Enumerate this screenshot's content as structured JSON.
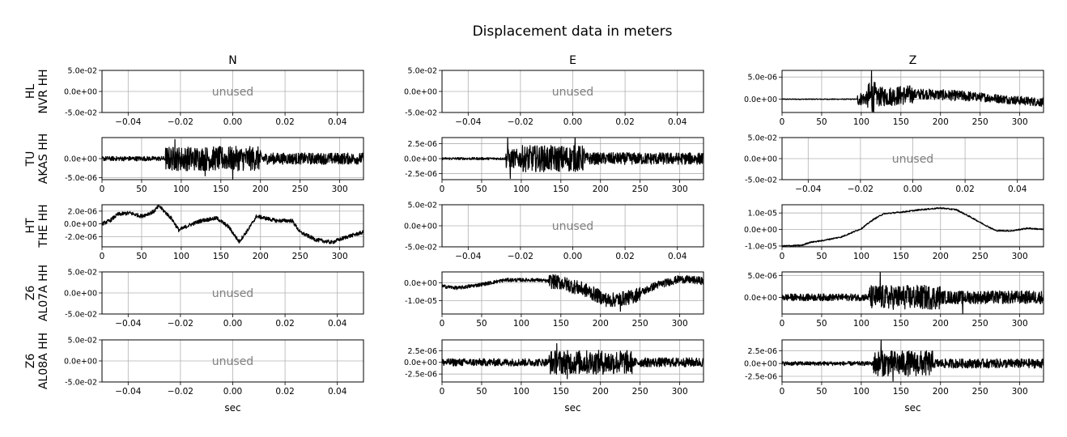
{
  "title": "Displacement data in meters",
  "xlabel": "sec",
  "columns": [
    "N",
    "E",
    "Z"
  ],
  "stations": [
    {
      "network": "HL",
      "code": "NVR HH"
    },
    {
      "network": "TU",
      "code": "AKAS HH"
    },
    {
      "network": "HT",
      "code": "THE HH"
    },
    {
      "network": "Z6",
      "code": "AL07A HH"
    },
    {
      "network": "Z6",
      "code": "AL08A HH"
    }
  ],
  "unused_label": "unused",
  "unused_axes": {
    "xlim": [
      -0.05,
      0.05
    ],
    "ylim": [
      -0.05,
      0.05
    ],
    "xticks": [
      "-0.04",
      "-0.02",
      "0.00",
      "0.02",
      "0.04"
    ],
    "yticks": [
      "5.0e-02",
      "0.0e+00",
      "-5.0e-02"
    ]
  },
  "trace_xticks": [
    "0",
    "50",
    "100",
    "150",
    "200",
    "250",
    "300"
  ],
  "colors": {
    "trace": "#000000",
    "grid": "#b0b0b0",
    "unused_text": "#808080"
  },
  "chart_data": [
    {
      "row": 0,
      "col": 0,
      "type": "line",
      "unused": true
    },
    {
      "row": 0,
      "col": 1,
      "type": "line",
      "unused": true
    },
    {
      "row": 0,
      "col": 2,
      "type": "line",
      "unused": false,
      "xlim": [
        0,
        330
      ],
      "ylim": [
        -3e-06,
        6.5e-06
      ],
      "yticks": [
        {
          "v": 5e-06,
          "label": "5.0e-06"
        },
        {
          "v": 0,
          "label": "0.0e+00"
        }
      ],
      "noise": [
        {
          "t0": 0,
          "t1": 95,
          "amp": 1e-07
        },
        {
          "t0": 95,
          "t1": 108,
          "amp": 1.5e-06
        },
        {
          "t0": 108,
          "t1": 118,
          "amp": 3.5e-06
        },
        {
          "t0": 118,
          "t1": 165,
          "amp": 2.2e-06
        },
        {
          "t0": 165,
          "t1": 240,
          "amp": 1.2e-06
        },
        {
          "t0": 240,
          "t1": 330,
          "amp": 1e-06
        }
      ],
      "trend": [
        [
          0,
          0
        ],
        [
          95,
          0
        ],
        [
          120,
          5e-07
        ],
        [
          180,
          1.2e-06
        ],
        [
          250,
          5e-07
        ],
        [
          300,
          -3e-07
        ],
        [
          330,
          -7e-07
        ]
      ],
      "spikes": [
        [
          113,
          6.5e-06
        ],
        [
          115,
          -2.8e-06
        ]
      ]
    },
    {
      "row": 1,
      "col": 0,
      "type": "line",
      "unused": false,
      "xlim": [
        0,
        330
      ],
      "ylim": [
        -5.5e-06,
        5.5e-06
      ],
      "yticks": [
        {
          "v": 0,
          "label": "0.0e+00"
        },
        {
          "v": -5e-06,
          "label": "-5.0e-06"
        }
      ],
      "noise": [
        {
          "t0": 0,
          "t1": 80,
          "amp": 6e-07
        },
        {
          "t0": 80,
          "t1": 200,
          "amp": 3.2e-06
        },
        {
          "t0": 200,
          "t1": 330,
          "amp": 1.5e-06
        }
      ],
      "trend": [
        [
          0,
          0
        ],
        [
          330,
          0
        ]
      ],
      "spikes": [
        [
          92,
          5e-06
        ],
        [
          165,
          -5.4e-06
        ],
        [
          130,
          -4.5e-06
        ]
      ]
    },
    {
      "row": 1,
      "col": 1,
      "type": "line",
      "unused": false,
      "xlim": [
        0,
        330
      ],
      "ylim": [
        -3.5e-06,
        3.5e-06
      ],
      "yticks": [
        {
          "v": 2.5e-06,
          "label": "2.5e-06"
        },
        {
          "v": 0,
          "label": "0.0e+00"
        },
        {
          "v": -2.5e-06,
          "label": "-2.5e-06"
        }
      ],
      "noise": [
        {
          "t0": 0,
          "t1": 80,
          "amp": 2e-07
        },
        {
          "t0": 80,
          "t1": 100,
          "amp": 1.6e-06
        },
        {
          "t0": 100,
          "t1": 180,
          "amp": 2.2e-06
        },
        {
          "t0": 180,
          "t1": 330,
          "amp": 1e-06
        }
      ],
      "trend": [
        [
          0,
          0
        ],
        [
          330,
          0
        ]
      ],
      "spikes": [
        [
          83,
          3.5e-06
        ],
        [
          86,
          -3.3e-06
        ],
        [
          168,
          3.5e-06
        ]
      ]
    },
    {
      "row": 1,
      "col": 2,
      "type": "line",
      "unused": true
    },
    {
      "row": 2,
      "col": 0,
      "type": "line",
      "unused": false,
      "xlim": [
        0,
        330
      ],
      "ylim": [
        -3.6e-06,
        3e-06
      ],
      "yticks": [
        {
          "v": 2e-06,
          "label": "2.0e-06"
        },
        {
          "v": 0,
          "label": "0.0e+00"
        },
        {
          "v": -2e-06,
          "label": "-2.0e-06"
        }
      ],
      "noise": [
        {
          "t0": 0,
          "t1": 330,
          "amp": 3e-07
        }
      ],
      "trend": [
        [
          0,
          0
        ],
        [
          10,
          5e-07
        ],
        [
          20,
          1.5e-06
        ],
        [
          35,
          1.7e-06
        ],
        [
          50,
          1.2e-06
        ],
        [
          65,
          1.9e-06
        ],
        [
          72,
          2.8e-06
        ],
        [
          80,
          1.8e-06
        ],
        [
          88,
          8e-07
        ],
        [
          97,
          -1e-06
        ],
        [
          110,
          -2e-07
        ],
        [
          125,
          5e-07
        ],
        [
          145,
          9e-07
        ],
        [
          160,
          -5e-07
        ],
        [
          173,
          -2.8e-06
        ],
        [
          185,
          -8e-07
        ],
        [
          195,
          1.2e-06
        ],
        [
          220,
          5e-07
        ],
        [
          240,
          5e-07
        ],
        [
          250,
          -1.3e-06
        ],
        [
          270,
          -2.5e-06
        ],
        [
          290,
          -2.9e-06
        ],
        [
          310,
          -2e-06
        ],
        [
          330,
          -1.3e-06
        ]
      ],
      "spikes": []
    },
    {
      "row": 2,
      "col": 1,
      "type": "line",
      "unused": true
    },
    {
      "row": 2,
      "col": 2,
      "type": "line",
      "unused": false,
      "xlim": [
        0,
        330
      ],
      "ylim": [
        -1.05e-05,
        1.5e-05
      ],
      "yticks": [
        {
          "v": 1e-05,
          "label": "1.0e-05"
        },
        {
          "v": 0,
          "label": "0.0e+00"
        },
        {
          "v": -1e-05,
          "label": "-1.0e-05"
        }
      ],
      "noise": [
        {
          "t0": 0,
          "t1": 330,
          "amp": 4e-07
        }
      ],
      "trend": [
        [
          0,
          -1e-05
        ],
        [
          25,
          -9.6e-06
        ],
        [
          35,
          -7.8e-06
        ],
        [
          50,
          -6.8e-06
        ],
        [
          75,
          -4.5e-06
        ],
        [
          100,
          5e-07
        ],
        [
          115,
          6e-06
        ],
        [
          128,
          9.5e-06
        ],
        [
          150,
          1.05e-05
        ],
        [
          175,
          1.2e-05
        ],
        [
          200,
          1.3e-05
        ],
        [
          220,
          1.2e-05
        ],
        [
          240,
          7e-06
        ],
        [
          255,
          3e-06
        ],
        [
          270,
          -7e-07
        ],
        [
          290,
          -8e-07
        ],
        [
          310,
          8e-07
        ],
        [
          330,
          0
        ]
      ],
      "spikes": []
    },
    {
      "row": 3,
      "col": 0,
      "type": "line",
      "unused": true
    },
    {
      "row": 3,
      "col": 1,
      "type": "line",
      "unused": false,
      "xlim": [
        0,
        330
      ],
      "ylim": [
        -1.75e-05,
        6e-06
      ],
      "yticks": [
        {
          "v": 0,
          "label": "0.0e+00"
        },
        {
          "v": -1e-05,
          "label": "-1.0e-05"
        }
      ],
      "noise": [
        {
          "t0": 0,
          "t1": 135,
          "amp": 1e-06
        },
        {
          "t0": 135,
          "t1": 250,
          "amp": 4e-06
        },
        {
          "t0": 250,
          "t1": 330,
          "amp": 2.2e-06
        }
      ],
      "trend": [
        [
          0,
          -2e-06
        ],
        [
          20,
          -3e-06
        ],
        [
          50,
          -1e-06
        ],
        [
          80,
          1.5e-06
        ],
        [
          120,
          1.5e-06
        ],
        [
          150,
          0
        ],
        [
          180,
          -4e-06
        ],
        [
          210,
          -1e-05
        ],
        [
          240,
          -8e-06
        ],
        [
          270,
          -1.5e-06
        ],
        [
          300,
          2e-06
        ],
        [
          330,
          1e-06
        ]
      ],
      "spikes": [
        [
          140,
          4.5e-06
        ],
        [
          225,
          -1.6e-05
        ]
      ]
    },
    {
      "row": 3,
      "col": 2,
      "type": "line",
      "unused": false,
      "xlim": [
        0,
        330
      ],
      "ylim": [
        -3.8e-06,
        5.8e-06
      ],
      "yticks": [
        {
          "v": 5e-06,
          "label": "5.0e-06"
        },
        {
          "v": 0,
          "label": "0.0e+00"
        }
      ],
      "noise": [
        {
          "t0": 0,
          "t1": 110,
          "amp": 8e-07
        },
        {
          "t0": 110,
          "t1": 200,
          "amp": 2.8e-06
        },
        {
          "t0": 200,
          "t1": 330,
          "amp": 1.5e-06
        }
      ],
      "trend": [
        [
          0,
          0
        ],
        [
          330,
          0
        ]
      ],
      "spikes": [
        [
          124,
          5.8e-06
        ],
        [
          228,
          -3.8e-06
        ]
      ]
    },
    {
      "row": 4,
      "col": 0,
      "type": "line",
      "unused": true
    },
    {
      "row": 4,
      "col": 1,
      "type": "line",
      "unused": false,
      "xlim": [
        0,
        330
      ],
      "ylim": [
        -4.2e-06,
        4.8e-06
      ],
      "yticks": [
        {
          "v": 2.5e-06,
          "label": "2.5e-06"
        },
        {
          "v": 0,
          "label": "0.0e+00"
        },
        {
          "v": -2.5e-06,
          "label": "-2.5e-06"
        }
      ],
      "noise": [
        {
          "t0": 0,
          "t1": 135,
          "amp": 8e-07
        },
        {
          "t0": 135,
          "t1": 240,
          "amp": 2.6e-06
        },
        {
          "t0": 240,
          "t1": 330,
          "amp": 1e-06
        }
      ],
      "trend": [
        [
          0,
          0
        ],
        [
          330,
          0
        ]
      ],
      "spikes": [
        [
          145,
          4e-06
        ],
        [
          158,
          -3.5e-06
        ]
      ]
    },
    {
      "row": 4,
      "col": 2,
      "type": "line",
      "unused": false,
      "xlim": [
        0,
        330
      ],
      "ylim": [
        -3.6e-06,
        4.6e-06
      ],
      "yticks": [
        {
          "v": 2.5e-06,
          "label": "2.5e-06"
        },
        {
          "v": 0,
          "label": "0.0e+00"
        },
        {
          "v": -2.5e-06,
          "label": "-2.5e-06"
        }
      ],
      "noise": [
        {
          "t0": 0,
          "t1": 115,
          "amp": 4e-07
        },
        {
          "t0": 115,
          "t1": 190,
          "amp": 2.5e-06
        },
        {
          "t0": 190,
          "t1": 330,
          "amp": 9e-07
        }
      ],
      "trend": [
        [
          0,
          0
        ],
        [
          330,
          0
        ]
      ],
      "spikes": [
        [
          125,
          4.6e-06
        ],
        [
          140,
          -3.4e-06
        ]
      ]
    }
  ]
}
